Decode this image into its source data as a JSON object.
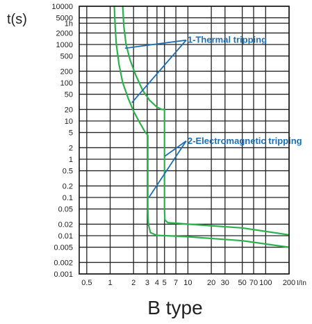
{
  "chart_data": {
    "type": "line",
    "title": "B type",
    "ylabel": "t(s)",
    "xunit": "I/In",
    "x_scale": "log",
    "y_scale": "log",
    "xlim": [
      0.4,
      200
    ],
    "ylim": [
      0.001,
      10000
    ],
    "grid": true,
    "x_ticks": [
      {
        "value": 0.5,
        "label": "0.5"
      },
      {
        "value": 1,
        "label": "1"
      },
      {
        "value": 2,
        "label": "2"
      },
      {
        "value": 3,
        "label": "3"
      },
      {
        "value": 4,
        "label": "4"
      },
      {
        "value": 5,
        "label": "5"
      },
      {
        "value": 7,
        "label": "7"
      },
      {
        "value": 10,
        "label": "10"
      },
      {
        "value": 20,
        "label": "20"
      },
      {
        "value": 30,
        "label": "30"
      },
      {
        "value": 50,
        "label": "50"
      },
      {
        "value": 70,
        "label": "70"
      },
      {
        "value": 100,
        "label": "100"
      },
      {
        "value": 200,
        "label": "200"
      }
    ],
    "y_ticks": [
      {
        "value": 10000,
        "label": "10000"
      },
      {
        "value": 5000,
        "label": "5000"
      },
      {
        "value": 3600,
        "label": "1h"
      },
      {
        "value": 2000,
        "label": "2000"
      },
      {
        "value": 1000,
        "label": "1000"
      },
      {
        "value": 500,
        "label": "500"
      },
      {
        "value": 200,
        "label": "200"
      },
      {
        "value": 100,
        "label": "100"
      },
      {
        "value": 50,
        "label": "50"
      },
      {
        "value": 20,
        "label": "20"
      },
      {
        "value": 10,
        "label": "10"
      },
      {
        "value": 5,
        "label": "5"
      },
      {
        "value": 2,
        "label": "2"
      },
      {
        "value": 1,
        "label": "1"
      },
      {
        "value": 0.5,
        "label": "0.5"
      },
      {
        "value": 0.2,
        "label": "0.2"
      },
      {
        "value": 0.1,
        "label": "0.1"
      },
      {
        "value": 0.05,
        "label": "0.05"
      },
      {
        "value": 0.02,
        "label": "0.02"
      },
      {
        "value": 0.01,
        "label": "0.01"
      },
      {
        "value": 0.005,
        "label": "0.005"
      },
      {
        "value": 0.002,
        "label": "0.002"
      },
      {
        "value": 0.001,
        "label": "0.001"
      }
    ],
    "series": [
      {
        "color": "#2bb24c",
        "points": [
          [
            1.13,
            10000
          ],
          [
            1.16,
            3000
          ],
          [
            1.2,
            1000
          ],
          [
            1.3,
            300
          ],
          [
            1.45,
            100
          ],
          [
            1.7,
            40
          ],
          [
            2.0,
            18
          ],
          [
            2.4,
            9
          ],
          [
            2.8,
            5.2
          ],
          [
            3.05,
            4.2
          ],
          [
            3.05,
            3.5
          ],
          [
            3.05,
            0.05
          ],
          [
            3.1,
            0.02
          ],
          [
            3.3,
            0.012
          ],
          [
            4.0,
            0.0102
          ],
          [
            10,
            0.0094
          ],
          [
            50,
            0.0074
          ],
          [
            200,
            0.005
          ]
        ]
      },
      {
        "color": "#2bb24c",
        "points": [
          [
            1.45,
            10000
          ],
          [
            1.5,
            3000
          ],
          [
            1.6,
            1000
          ],
          [
            1.8,
            400
          ],
          [
            2.1,
            170
          ],
          [
            2.6,
            65
          ],
          [
            3.2,
            35
          ],
          [
            4.0,
            23
          ],
          [
            4.6,
            20
          ],
          [
            5.0,
            20
          ],
          [
            5.0,
            10
          ],
          [
            5.0,
            0.05
          ],
          [
            5.05,
            0.026
          ],
          [
            5.5,
            0.022
          ],
          [
            10,
            0.02
          ],
          [
            50,
            0.016
          ],
          [
            200,
            0.0105
          ]
        ]
      }
    ],
    "annotations": [
      {
        "text": "1-Thermal tripping",
        "color": "#1a6fb8",
        "anchor": [
          9.5,
          1300
        ],
        "targets": [
          [
            1.55,
            800
          ],
          [
            1.9,
            30
          ]
        ]
      },
      {
        "text": "2-Electromagnetic tripping",
        "color": "#1a6fb8",
        "anchor": [
          9.5,
          3
        ],
        "targets": [
          [
            5.05,
            1.2
          ],
          [
            3.15,
            0.1
          ]
        ]
      }
    ]
  }
}
